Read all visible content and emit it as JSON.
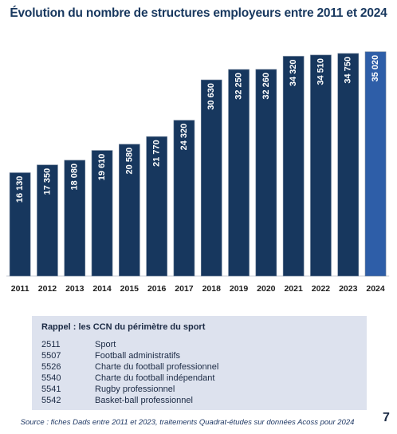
{
  "chart_data": {
    "type": "bar",
    "title": "Évolution du nombre de structures employeurs entre 2011 et 2024",
    "categories": [
      "2011",
      "2012",
      "2013",
      "2014",
      "2015",
      "2016",
      "2017",
      "2018",
      "2019",
      "2020",
      "2021",
      "2022",
      "2023",
      "2024"
    ],
    "values": [
      16130,
      17350,
      18080,
      19610,
      20580,
      21770,
      24320,
      30630,
      32250,
      32260,
      34320,
      34510,
      34750,
      35020
    ],
    "value_labels": [
      "16 130",
      "17 350",
      "18 080",
      "19 610",
      "20 580",
      "21 770",
      "24 320",
      "30 630",
      "32 250",
      "32 260",
      "34 320",
      "34 510",
      "34 750",
      "35 020"
    ],
    "ylim": [
      0,
      35500
    ],
    "grid": false,
    "bar_color": "#17375e",
    "highlight_color": "#2e5ea8",
    "highlight_index": 13
  },
  "legend": {
    "title": "Rappel : les CCN du périmètre du sport",
    "items": [
      {
        "code": "2511",
        "label": "Sport"
      },
      {
        "code": "5507",
        "label": "Football administratifs"
      },
      {
        "code": "5526",
        "label": "Charte du football professionnel"
      },
      {
        "code": "5540",
        "label": "Charte du football indépendant"
      },
      {
        "code": "5541",
        "label": "Rugby professionnel"
      },
      {
        "code": "5542",
        "label": "Basket-ball professionnel"
      }
    ]
  },
  "source": "Source : fiches Dads entre 2011 et 2023, traitements Quadrat-études sur données Acoss pour 2024",
  "page_number": "7"
}
